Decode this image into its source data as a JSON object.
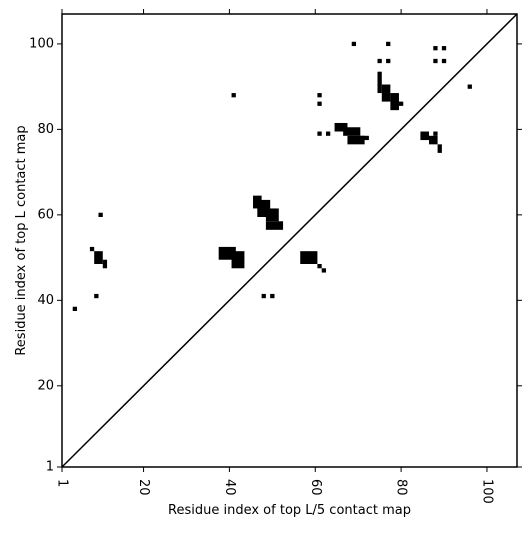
{
  "chart_data": {
    "type": "heatmap",
    "title": "",
    "xlabel": "Residue index of top L/5 contact map",
    "ylabel": "Residue index of top L contact map",
    "xlim": [
      1,
      107
    ],
    "ylim": [
      1,
      107
    ],
    "xticks": [
      1,
      20,
      40,
      60,
      80,
      100
    ],
    "yticks": [
      1,
      20,
      40,
      60,
      80,
      100
    ],
    "x_tick_label_rotation": -90,
    "grid": false,
    "diagonal": {
      "from": [
        1,
        1
      ],
      "to": [
        107,
        107
      ]
    },
    "cell_color": "#000000",
    "upper_contacts": [
      [
        69,
        100
      ],
      [
        77,
        100
      ],
      [
        88,
        99
      ],
      [
        90,
        99
      ],
      [
        75,
        96
      ],
      [
        77,
        96
      ],
      [
        88,
        96
      ],
      [
        90,
        96
      ],
      [
        96,
        90
      ],
      [
        41,
        88
      ],
      [
        61,
        88
      ],
      [
        61,
        86
      ],
      [
        80,
        86
      ],
      [
        61,
        79
      ],
      [
        63,
        79
      ],
      [
        88,
        79
      ],
      [
        10,
        60
      ],
      [
        9,
        41
      ],
      [
        48,
        41
      ],
      [
        50,
        41
      ],
      [
        4,
        38
      ],
      [
        62,
        47
      ],
      [
        61,
        48
      ]
    ],
    "upper_contact_segments": [
      {
        "x": 75,
        "y": [
          89,
          93
        ]
      },
      [
        [
          76,
          77
        ],
        [
          87,
          90
        ]
      ],
      [
        [
          78,
          79
        ],
        [
          85,
          88
        ]
      ],
      [
        [
          65,
          67
        ],
        [
          80,
          81
        ]
      ],
      [
        [
          67,
          70
        ],
        [
          79,
          80
        ]
      ],
      [
        [
          68,
          71
        ],
        [
          77,
          78
        ]
      ],
      [
        [
          71,
          72
        ],
        [
          78,
          78
        ]
      ],
      [
        [
          85,
          86
        ],
        [
          78,
          79
        ]
      ],
      [
        [
          87,
          88
        ],
        [
          77,
          78
        ]
      ],
      [
        [
          89,
          89
        ],
        [
          75,
          76
        ]
      ],
      [
        [
          46,
          47
        ],
        [
          62,
          64
        ]
      ],
      [
        [
          47,
          49
        ],
        [
          60,
          63
        ]
      ],
      [
        [
          49,
          51
        ],
        [
          59,
          61
        ]
      ],
      [
        [
          49,
          52
        ],
        [
          57,
          58
        ]
      ],
      [
        [
          38,
          41
        ],
        [
          50,
          52
        ]
      ],
      [
        [
          41,
          43
        ],
        [
          48,
          51
        ]
      ],
      [
        [
          57,
          60
        ],
        [
          49,
          51
        ]
      ],
      [
        [
          8,
          8
        ],
        [
          52,
          52
        ]
      ],
      [
        [
          9,
          10
        ],
        [
          49,
          51
        ]
      ],
      [
        [
          11,
          11
        ],
        [
          48,
          49
        ]
      ]
    ]
  }
}
